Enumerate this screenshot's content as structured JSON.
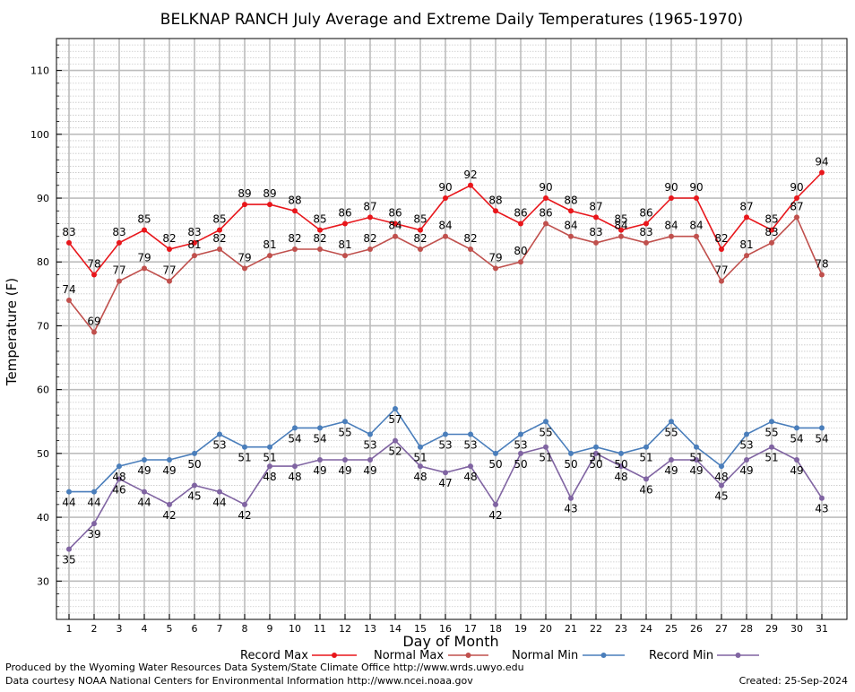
{
  "chart_data": {
    "type": "line",
    "title": "BELKNAP RANCH July Average and Extreme Daily Temperatures (1965-1970)",
    "xlabel": "Day of Month",
    "ylabel": "Temperature (F)",
    "ylim": [
      24,
      115
    ],
    "yticks": [
      30,
      40,
      50,
      60,
      70,
      80,
      90,
      100,
      110
    ],
    "x": [
      1,
      2,
      3,
      4,
      5,
      6,
      7,
      8,
      9,
      10,
      11,
      12,
      13,
      14,
      15,
      16,
      17,
      18,
      19,
      20,
      21,
      22,
      23,
      24,
      25,
      26,
      27,
      28,
      29,
      30,
      31
    ],
    "grid": true,
    "legend_position": "bottom",
    "series": [
      {
        "name": "Record Max",
        "color": "#e8161b",
        "values": [
          83,
          78,
          83,
          85,
          82,
          83,
          85,
          89,
          89,
          88,
          85,
          86,
          87,
          86,
          85,
          90,
          92,
          88,
          86,
          90,
          88,
          87,
          85,
          86,
          90,
          90,
          82,
          87,
          85,
          90,
          94
        ]
      },
      {
        "name": "Normal Max",
        "color": "#c0504d",
        "values": [
          74,
          69,
          77,
          79,
          77,
          81,
          82,
          79,
          81,
          82,
          82,
          81,
          82,
          84,
          82,
          84,
          82,
          79,
          80,
          86,
          84,
          83,
          84,
          83,
          84,
          84,
          77,
          81,
          83,
          87,
          78
        ]
      },
      {
        "name": "Normal Min",
        "color": "#4a7ebb",
        "values": [
          44,
          44,
          48,
          49,
          49,
          50,
          53,
          51,
          51,
          54,
          54,
          55,
          53,
          57,
          51,
          53,
          53,
          50,
          53,
          55,
          50,
          51,
          50,
          51,
          55,
          51,
          48,
          53,
          55,
          54,
          54
        ]
      },
      {
        "name": "Record Min",
        "color": "#8064a2",
        "values": [
          35,
          39,
          46,
          44,
          42,
          45,
          44,
          42,
          48,
          48,
          49,
          49,
          49,
          52,
          48,
          47,
          48,
          42,
          50,
          51,
          43,
          50,
          48,
          46,
          49,
          49,
          45,
          49,
          51,
          49,
          43
        ]
      }
    ]
  },
  "footer": {
    "produced_by": "Produced by the Wyoming Water Resources Data System/State Climate Office http://www.wrds.uwyo.edu",
    "courtesy": "Data courtesy NOAA National Centers for Environmental Information http://www.ncei.noaa.gov",
    "created": "Created:  25-Sep-2024"
  }
}
